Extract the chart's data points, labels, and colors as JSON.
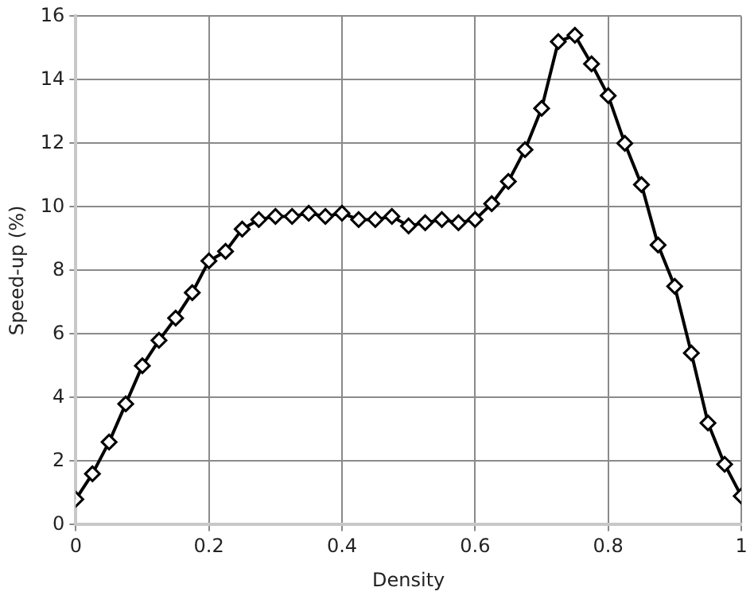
{
  "chart_data": {
    "type": "line",
    "xlabel": "Density",
    "ylabel": "Speed-up (%)",
    "x": [
      0,
      0.025,
      0.05,
      0.075,
      0.1,
      0.125,
      0.15,
      0.175,
      0.2,
      0.225,
      0.25,
      0.275,
      0.3,
      0.325,
      0.35,
      0.375,
      0.4,
      0.425,
      0.45,
      0.475,
      0.5,
      0.525,
      0.55,
      0.575,
      0.6,
      0.625,
      0.65,
      0.675,
      0.7,
      0.725,
      0.75,
      0.775,
      0.8,
      0.825,
      0.85,
      0.875,
      0.9,
      0.925,
      0.95,
      0.975,
      1
    ],
    "series": [
      {
        "color": "#000000",
        "values": [
          0.8,
          1.6,
          2.6,
          3.8,
          5.0,
          5.8,
          6.5,
          7.3,
          8.3,
          8.6,
          9.3,
          9.6,
          9.7,
          9.7,
          9.8,
          9.7,
          9.8,
          9.6,
          9.6,
          9.7,
          9.4,
          9.5,
          9.6,
          9.5,
          9.6,
          10.1,
          10.8,
          11.8,
          13.1,
          15.2,
          15.4,
          14.5,
          13.5,
          12.0,
          10.7,
          8.8,
          7.5,
          5.4,
          3.2,
          1.9,
          0.9
        ]
      }
    ],
    "xlim": [
      0,
      1
    ],
    "xticks": [
      0,
      0.2,
      0.4,
      0.6,
      0.8,
      1
    ],
    "ylim": [
      0,
      16
    ],
    "yticks": [
      0,
      2,
      4,
      6,
      8,
      10,
      12,
      14,
      16
    ],
    "grid": true,
    "legend": false,
    "marker": "diamond",
    "line_style": "solid"
  }
}
